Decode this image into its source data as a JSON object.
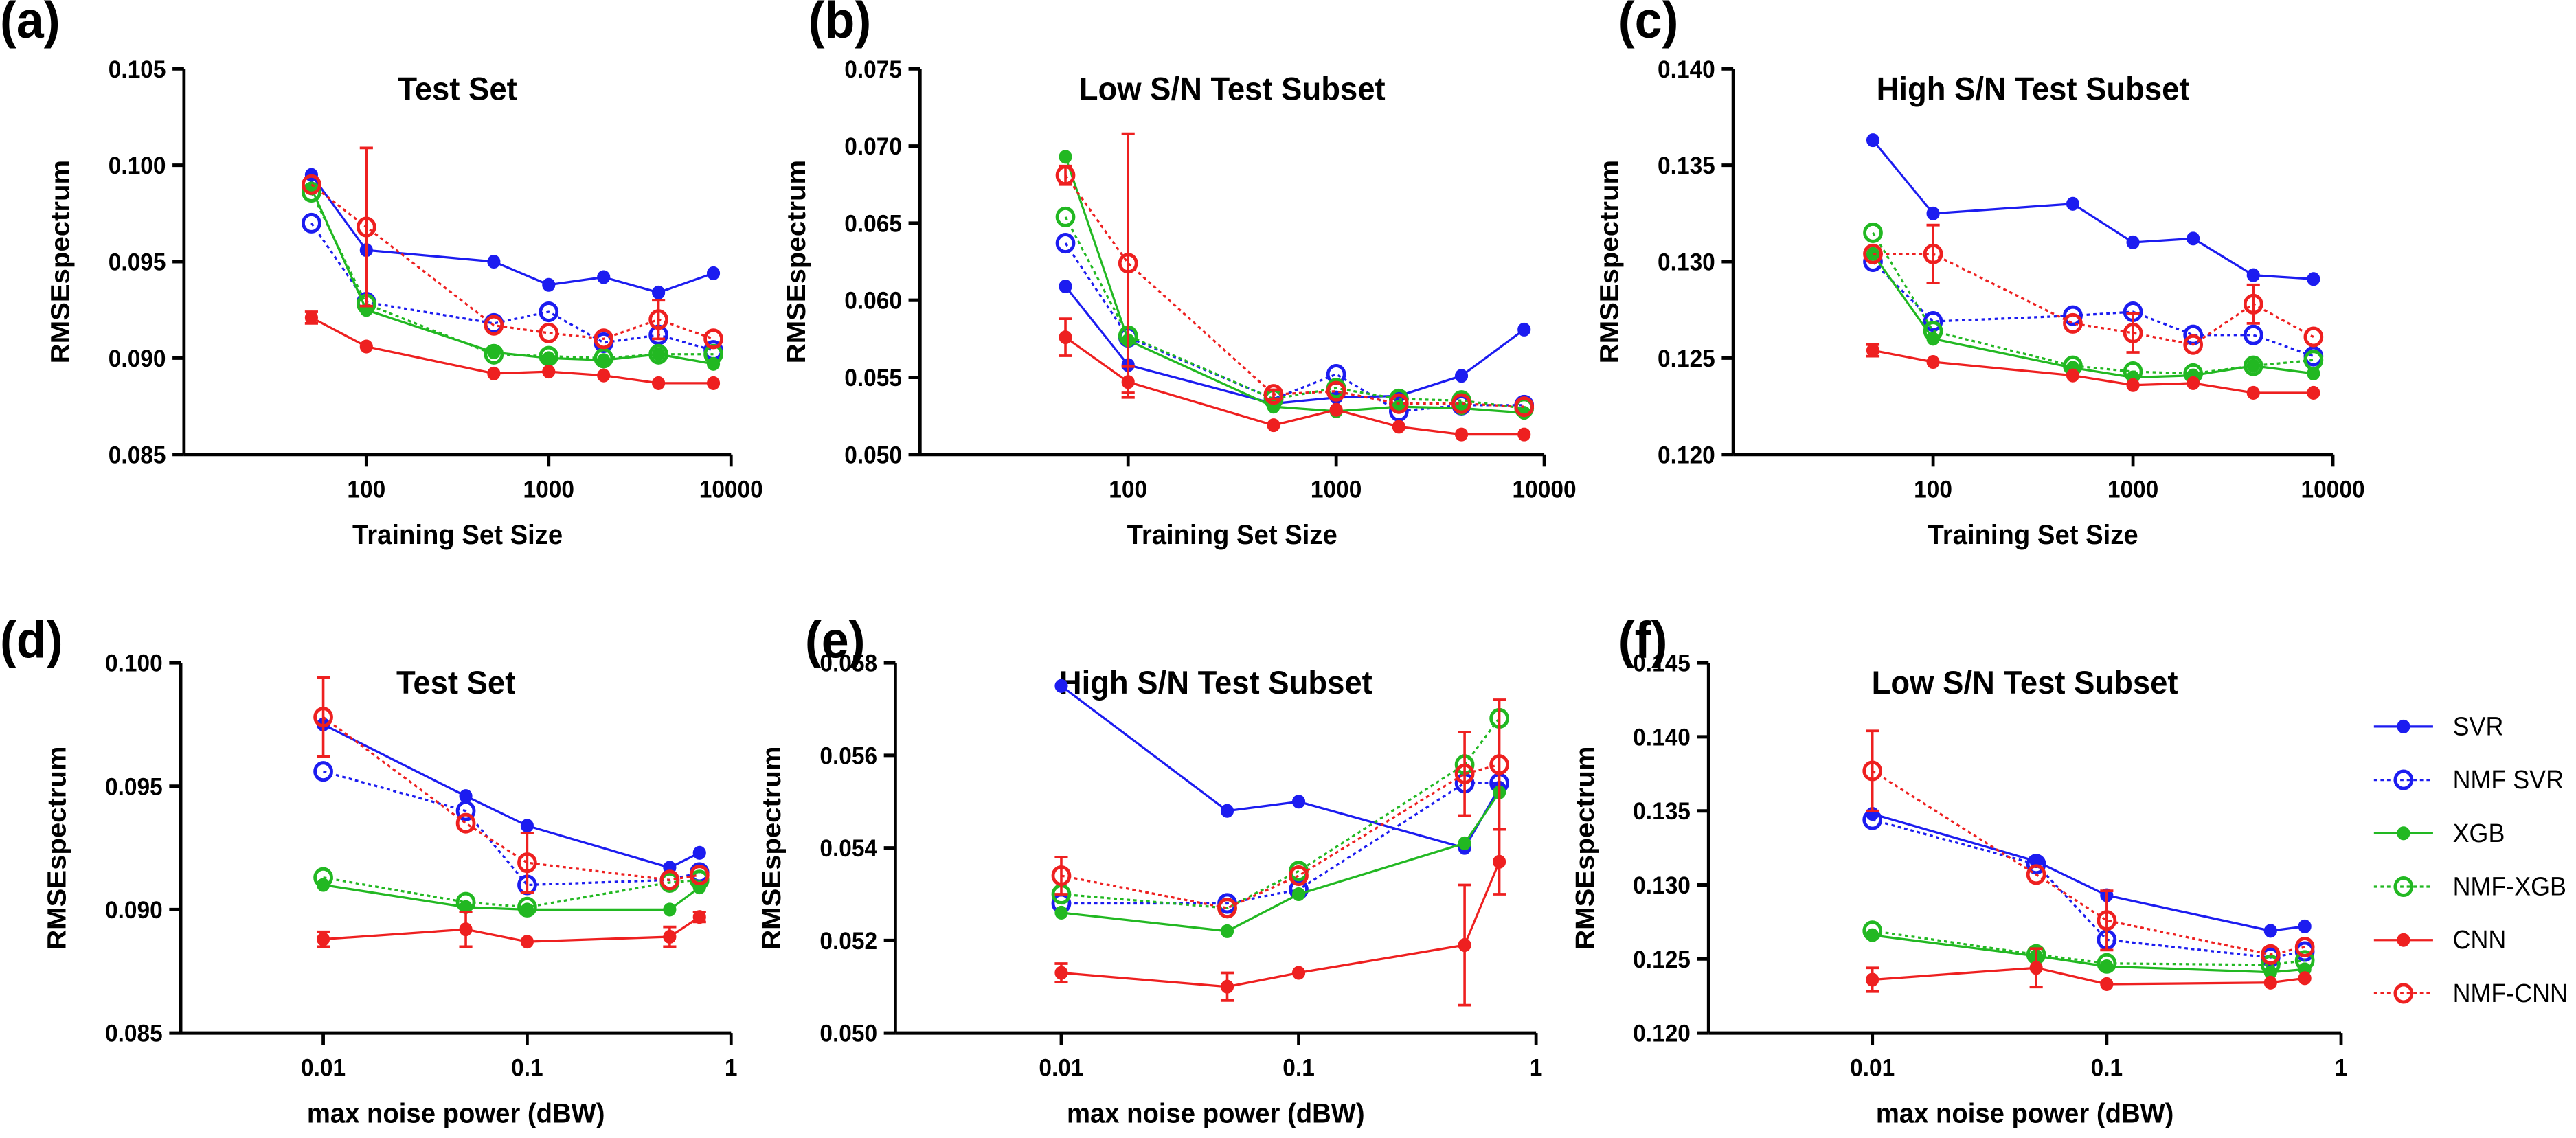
{
  "chart_data": [
    {
      "type": "line",
      "label": "(a)",
      "title": "Test Set",
      "xlabel": "Training Set Size",
      "ylabel": "RMSEspectrum",
      "xscale": "log",
      "x": [
        50,
        100,
        500,
        1000,
        2000,
        4000,
        8000
      ],
      "xlim": [
        10,
        10000
      ],
      "xticks": [
        100,
        1000,
        10000
      ],
      "ylim": [
        0.085,
        0.105
      ],
      "yticks": [
        0.085,
        {
          "value": 0.09,
          "label": "0.090"
        },
        0.095,
        {
          "value": 0.1,
          "label": "0.100"
        },
        0.105
      ],
      "series": [
        {
          "color": "#1c1cf0",
          "marker": "filled",
          "line": "solid",
          "values": [
            0.0995,
            0.0956,
            0.095,
            0.0938,
            0.0942,
            0.0934,
            0.0944
          ]
        },
        {
          "color": "#1c1cf0",
          "marker": "open",
          "line": "dotted",
          "values": [
            0.097,
            0.0929,
            0.0918,
            0.0924,
            0.0908,
            0.0912,
            0.0904
          ]
        },
        {
          "color": "#22b822",
          "marker": "filled",
          "line": "solid",
          "values": [
            0.0988,
            0.0925,
            0.0903,
            0.09,
            0.0899,
            0.0902,
            0.0897
          ]
        },
        {
          "color": "#22b822",
          "marker": "open",
          "line": "dotted",
          "values": [
            0.0986,
            0.0928,
            0.0902,
            0.0901,
            0.09,
            0.0902,
            0.0902
          ]
        },
        {
          "color": "#ee2020",
          "marker": "filled",
          "line": "solid",
          "values": [
            0.0921,
            0.0906,
            0.0892,
            0.0893,
            0.0891,
            0.0887,
            0.0887
          ],
          "errors": [
            0.0003,
            null,
            null,
            null,
            null,
            null,
            null
          ]
        },
        {
          "color": "#ee2020",
          "marker": "open",
          "line": "dotted",
          "values": [
            0.099,
            0.0968,
            0.0917,
            0.0913,
            0.091,
            0.092,
            0.091
          ],
          "errors": [
            null,
            0.0041,
            null,
            null,
            null,
            0.001,
            null
          ]
        }
      ]
    },
    {
      "type": "line",
      "label": "(b)",
      "title": "Low S/N Test Subset",
      "xlabel": "Training Set Size",
      "ylabel": "RMSEspectrum",
      "xscale": "log",
      "x": [
        50,
        100,
        500,
        1000,
        2000,
        4000,
        8000
      ],
      "xlim": [
        10,
        10000
      ],
      "xticks": [
        100,
        1000,
        10000
      ],
      "ylim": [
        0.05,
        0.075
      ],
      "yticks": [
        {
          "value": 0.05,
          "label": "0.050"
        },
        0.055,
        {
          "value": 0.06,
          "label": "0.060"
        },
        0.065,
        {
          "value": 0.07,
          "label": "0.070"
        },
        0.075
      ],
      "series": [
        {
          "color": "#1c1cf0",
          "marker": "filled",
          "line": "solid",
          "values": [
            0.0609,
            0.0558,
            0.0533,
            0.0537,
            0.0538,
            0.0551,
            0.0581
          ]
        },
        {
          "color": "#1c1cf0",
          "marker": "open",
          "line": "dotted",
          "values": [
            0.0637,
            0.0576,
            0.0536,
            0.0552,
            0.0528,
            0.0532,
            0.0532
          ]
        },
        {
          "color": "#22b822",
          "marker": "filled",
          "line": "solid",
          "values": [
            0.0693,
            0.0574,
            0.0531,
            0.0528,
            0.0531,
            0.053,
            0.0527
          ]
        },
        {
          "color": "#22b822",
          "marker": "open",
          "line": "dotted",
          "values": [
            0.0654,
            0.0577,
            0.0536,
            0.0543,
            0.0536,
            0.0535,
            0.053
          ]
        },
        {
          "color": "#ee2020",
          "marker": "filled",
          "line": "solid",
          "values": [
            0.0576,
            0.0547,
            0.0519,
            0.0529,
            0.0518,
            0.0513,
            0.0513
          ],
          "errors": [
            0.0012,
            0.001,
            null,
            null,
            null,
            null,
            null
          ]
        },
        {
          "color": "#ee2020",
          "marker": "open",
          "line": "dotted",
          "values": [
            0.0681,
            0.0624,
            0.0539,
            0.0541,
            0.0533,
            0.0533,
            0.0531
          ],
          "errors": [
            0.0006,
            0.0084,
            0.0003,
            null,
            null,
            null,
            null
          ]
        }
      ]
    },
    {
      "type": "line",
      "label": "(c)",
      "title": "High S/N Test Subset",
      "xlabel": "Training Set Size",
      "ylabel": "RMSEspectrum",
      "xscale": "log",
      "x": [
        50,
        100,
        500,
        1000,
        2000,
        4000,
        8000
      ],
      "xlim": [
        10,
        10000
      ],
      "xticks": [
        100,
        1000,
        10000
      ],
      "ylim": [
        0.12,
        0.14
      ],
      "yticks": [
        {
          "value": 0.12,
          "label": "0.120"
        },
        0.125,
        {
          "value": 0.13,
          "label": "0.130"
        },
        0.135,
        {
          "value": 0.14,
          "label": "0.140"
        }
      ],
      "series": [
        {
          "color": "#1c1cf0",
          "marker": "filled",
          "line": "solid",
          "values": [
            0.1363,
            0.1325,
            0.133,
            0.131,
            0.1312,
            0.1293,
            0.1291
          ]
        },
        {
          "color": "#1c1cf0",
          "marker": "open",
          "line": "dotted",
          "values": [
            0.13,
            0.1269,
            0.1272,
            0.1274,
            0.1262,
            0.1262,
            0.1251
          ]
        },
        {
          "color": "#22b822",
          "marker": "filled",
          "line": "solid",
          "values": [
            0.1304,
            0.126,
            0.1245,
            0.124,
            0.1241,
            0.1246,
            0.1242
          ]
        },
        {
          "color": "#22b822",
          "marker": "open",
          "line": "dotted",
          "values": [
            0.1315,
            0.1264,
            0.1246,
            0.1243,
            0.1242,
            0.1246,
            0.1249
          ]
        },
        {
          "color": "#ee2020",
          "marker": "filled",
          "line": "solid",
          "values": [
            0.1254,
            0.1248,
            0.1241,
            0.1236,
            0.1237,
            0.1232,
            0.1232
          ],
          "errors": [
            0.0003,
            null,
            null,
            null,
            null,
            null,
            null
          ]
        },
        {
          "color": "#ee2020",
          "marker": "open",
          "line": "dotted",
          "values": [
            0.1304,
            0.1304,
            0.1268,
            0.1263,
            0.1257,
            0.1278,
            0.1261
          ],
          "errors": [
            null,
            0.0015,
            null,
            0.001,
            null,
            0.001,
            null
          ]
        }
      ]
    },
    {
      "type": "line",
      "label": "(d)",
      "title": "Test Set",
      "xlabel": "max noise power (dBW)",
      "ylabel": "RMSEspectrum",
      "xscale": "log",
      "x": [
        0.01,
        0.05,
        0.1,
        0.5,
        0.7
      ],
      "xlim": [
        0.002,
        1
      ],
      "xticks": [
        0.01,
        0.1,
        1
      ],
      "ylim": [
        0.085,
        0.1
      ],
      "yticks": [
        0.085,
        {
          "value": 0.09,
          "label": "0.090"
        },
        0.095,
        {
          "value": 0.1,
          "label": "0.100"
        }
      ],
      "series": [
        {
          "color": "#1c1cf0",
          "marker": "filled",
          "line": "solid",
          "values": [
            0.0975,
            0.0946,
            0.0934,
            0.0917,
            0.0923
          ]
        },
        {
          "color": "#1c1cf0",
          "marker": "open",
          "line": "dotted",
          "values": [
            0.0956,
            0.094,
            0.091,
            0.0912,
            0.0915
          ]
        },
        {
          "color": "#22b822",
          "marker": "filled",
          "line": "solid",
          "values": [
            0.091,
            0.0901,
            0.09,
            0.09,
            0.0909
          ]
        },
        {
          "color": "#22b822",
          "marker": "open",
          "line": "dotted",
          "values": [
            0.0913,
            0.0903,
            0.0901,
            0.0911,
            0.0912
          ]
        },
        {
          "color": "#ee2020",
          "marker": "filled",
          "line": "solid",
          "values": [
            0.0888,
            0.0892,
            0.0887,
            0.0889,
            0.0897
          ],
          "errors": [
            0.0003,
            0.0007,
            null,
            0.0004,
            0.0002
          ]
        },
        {
          "color": "#ee2020",
          "marker": "open",
          "line": "dotted",
          "values": [
            0.0978,
            0.0935,
            0.0919,
            0.0912,
            0.0914
          ],
          "errors": [
            0.0016,
            null,
            0.0012,
            null,
            null
          ]
        }
      ]
    },
    {
      "type": "line",
      "label": "(e)",
      "title": "High S/N Test Subset",
      "xlabel": "max noise power (dBW)",
      "ylabel": "RMSEspectrum",
      "xscale": "log",
      "x": [
        0.01,
        0.05,
        0.1,
        0.5,
        0.7
      ],
      "xlim": [
        0.002,
        1
      ],
      "xticks": [
        0.01,
        0.1,
        1
      ],
      "ylim": [
        0.05,
        0.058
      ],
      "yticks": [
        {
          "value": 0.05,
          "label": "0.050"
        },
        0.052,
        0.054,
        0.056,
        0.058
      ],
      "series": [
        {
          "color": "#1c1cf0",
          "marker": "filled",
          "line": "solid",
          "values": [
            0.0575,
            0.0548,
            0.055,
            0.054,
            0.0553
          ]
        },
        {
          "color": "#1c1cf0",
          "marker": "open",
          "line": "dotted",
          "values": [
            0.0528,
            0.0528,
            0.0531,
            0.0554,
            0.0554
          ]
        },
        {
          "color": "#22b822",
          "marker": "filled",
          "line": "solid",
          "values": [
            0.0526,
            0.0522,
            0.053,
            0.0541,
            0.0552
          ]
        },
        {
          "color": "#22b822",
          "marker": "open",
          "line": "dotted",
          "values": [
            0.053,
            0.0527,
            0.0535,
            0.0558,
            0.0568
          ]
        },
        {
          "color": "#ee2020",
          "marker": "filled",
          "line": "solid",
          "values": [
            0.0513,
            0.051,
            0.0513,
            0.0519,
            0.0537
          ],
          "errors": [
            0.0002,
            0.0003,
            null,
            0.0013,
            0.0007
          ]
        },
        {
          "color": "#ee2020",
          "marker": "open",
          "line": "dotted",
          "values": [
            0.0534,
            0.0527,
            0.0534,
            0.0556,
            0.0558
          ],
          "errors": [
            0.0004,
            null,
            null,
            0.0009,
            0.0014
          ]
        }
      ]
    },
    {
      "type": "line",
      "label": "(f)",
      "title": "Low S/N Test Subset",
      "xlabel": "max noise power (dBW)",
      "ylabel": "RMSEspectrum",
      "xscale": "log",
      "legend": "right",
      "x": [
        0.01,
        0.05,
        0.1,
        0.5,
        0.7
      ],
      "xlim": [
        0.002,
        1
      ],
      "xticks": [
        0.01,
        0.1,
        1
      ],
      "ylim": [
        0.12,
        0.145
      ],
      "yticks": [
        {
          "value": 0.12,
          "label": "0.120"
        },
        0.125,
        {
          "value": 0.13,
          "label": "0.130"
        },
        0.135,
        {
          "value": 0.14,
          "label": "0.140"
        },
        0.145
      ],
      "series": [
        {
          "name": "SVR",
          "color": "#1c1cf0",
          "marker": "filled",
          "line": "solid",
          "values": [
            0.1348,
            0.1316,
            0.1293,
            0.1269,
            0.1272
          ]
        },
        {
          "name": "NMF SVR",
          "color": "#1c1cf0",
          "marker": "open",
          "line": "dotted",
          "values": [
            0.1344,
            0.1314,
            0.1263,
            0.1251,
            0.1255
          ]
        },
        {
          "name": "XGB",
          "color": "#22b822",
          "marker": "filled",
          "line": "solid",
          "values": [
            0.1266,
            0.1252,
            0.1245,
            0.1241,
            0.1243
          ]
        },
        {
          "name": "NMF-XGB",
          "color": "#22b822",
          "marker": "open",
          "line": "dotted",
          "values": [
            0.1269,
            0.1253,
            0.1247,
            0.1246,
            0.1249
          ]
        },
        {
          "name": "CNN",
          "color": "#ee2020",
          "marker": "filled",
          "line": "solid",
          "values": [
            0.1236,
            0.1244,
            0.1233,
            0.1234,
            0.1237
          ],
          "errors": [
            0.0008,
            0.0013,
            null,
            null,
            null
          ]
        },
        {
          "name": "NMF-CNN",
          "color": "#ee2020",
          "marker": "open",
          "line": "dotted",
          "values": [
            0.1377,
            0.1307,
            0.1276,
            0.1253,
            0.1258
          ],
          "errors": [
            0.0027,
            null,
            0.002,
            null,
            null
          ]
        }
      ]
    }
  ]
}
